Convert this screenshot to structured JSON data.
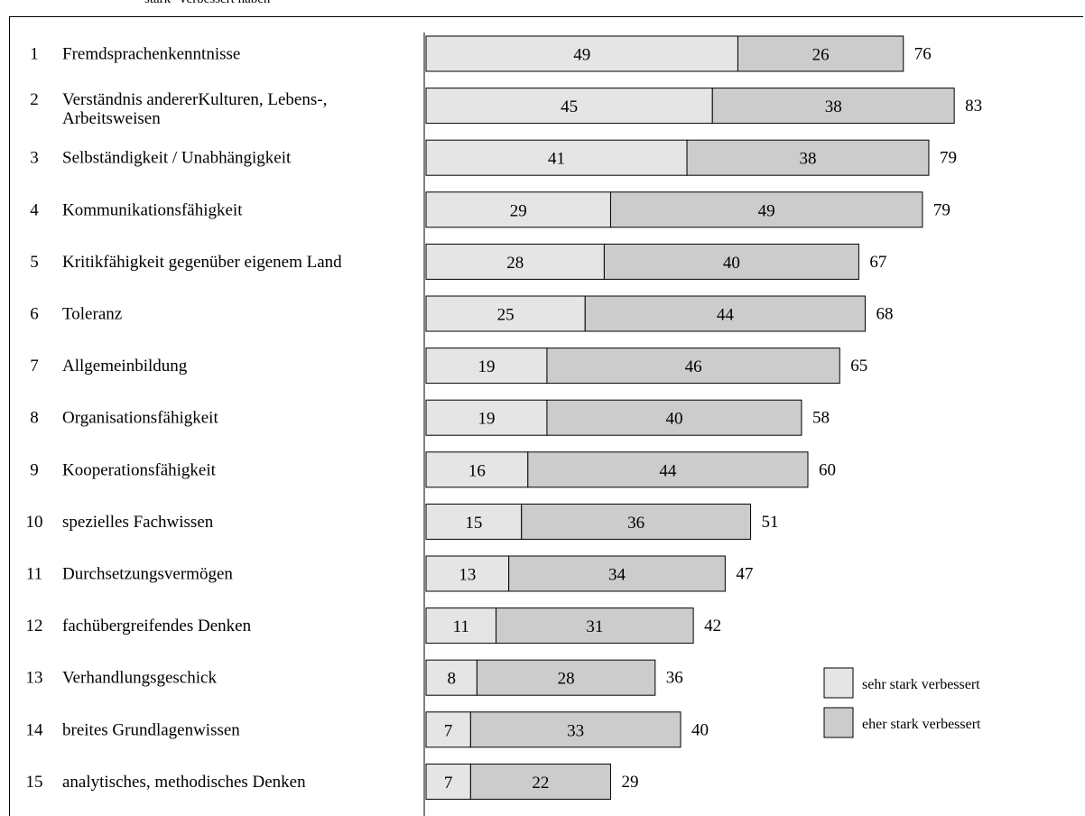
{
  "header": {
    "caption": "stark\" verbessert haben"
  },
  "chart_data": {
    "type": "bar",
    "orientation": "horizontal",
    "stacked": true,
    "categories": [
      {
        "num": "1",
        "lines": [
          "Fremdsprachenkenntnisse"
        ]
      },
      {
        "num": "2",
        "lines": [
          "Verständnis andererKulturen, Lebens-,",
          "Arbeitsweisen"
        ]
      },
      {
        "num": "3",
        "lines": [
          "Selbständigkeit / Unabhängigkeit"
        ]
      },
      {
        "num": "4",
        "lines": [
          "Kommunikationsfähigkeit"
        ]
      },
      {
        "num": "5",
        "lines": [
          "Kritikfähigkeit gegenüber eigenem Land"
        ]
      },
      {
        "num": "6",
        "lines": [
          "Toleranz"
        ]
      },
      {
        "num": "7",
        "lines": [
          "Allgemeinbildung"
        ]
      },
      {
        "num": "8",
        "lines": [
          "Organisationsfähigkeit"
        ]
      },
      {
        "num": "9",
        "lines": [
          "Kooperationsfähigkeit"
        ]
      },
      {
        "num": "10",
        "lines": [
          "spezielles Fachwissen"
        ]
      },
      {
        "num": "11",
        "lines": [
          "Durchsetzungsvermögen"
        ]
      },
      {
        "num": "12",
        "lines": [
          "fachübergreifendes Denken"
        ]
      },
      {
        "num": "13",
        "lines": [
          "Verhandlungsgeschick"
        ]
      },
      {
        "num": "14",
        "lines": [
          "breites Grundlagenwissen"
        ]
      },
      {
        "num": "15",
        "lines": [
          "analytisches, methodisches Denken"
        ]
      }
    ],
    "series": [
      {
        "name": "sehr stark verbessert",
        "color": "#e5e5e5",
        "values": [
          49,
          45,
          41,
          29,
          28,
          25,
          19,
          19,
          16,
          15,
          13,
          11,
          8,
          7,
          7
        ]
      },
      {
        "name": "eher stark verbessert",
        "color": "#cccccc",
        "values": [
          26,
          38,
          38,
          49,
          40,
          44,
          46,
          40,
          44,
          36,
          34,
          31,
          28,
          33,
          22
        ]
      }
    ],
    "totals": [
      76,
      83,
      79,
      79,
      67,
      68,
      65,
      58,
      60,
      51,
      47,
      42,
      36,
      40,
      29
    ],
    "legend": {
      "position": "bottom-right"
    },
    "grid": false
  }
}
